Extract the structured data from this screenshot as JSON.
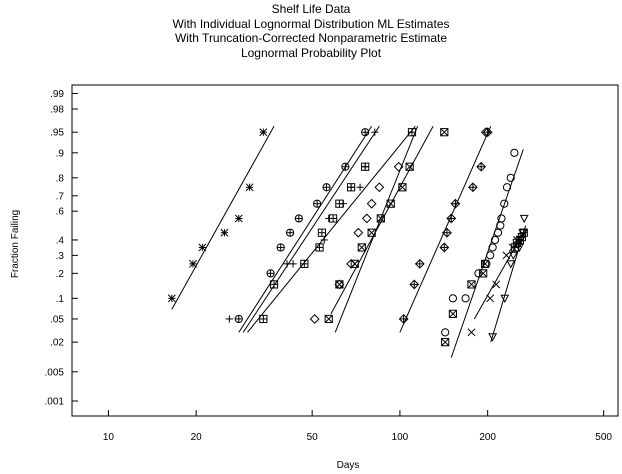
{
  "chart_data": {
    "type": "scatter",
    "title_lines": [
      "Shelf Life Data",
      "With Individual Lognormal Distribution ML Estimates",
      "With Truncation-Corrected Nonparametric Estimate",
      "Lognormal Probability Plot"
    ],
    "xlabel": "Days",
    "ylabel": "Fraction Failing",
    "x_scale": "log",
    "y_scale": "normal-probability",
    "xlim": [
      7.5,
      560
    ],
    "ylim": [
      0.0005,
      0.997
    ],
    "x_ticks": [
      10,
      20,
      50,
      100,
      200,
      500
    ],
    "x_tick_labels": [
      "10",
      "20",
      "50",
      "100",
      "200",
      "500"
    ],
    "y_ticks": [
      0.001,
      0.005,
      0.02,
      0.05,
      0.1,
      0.2,
      0.3,
      0.4,
      0.6,
      0.7,
      0.8,
      0.9,
      0.95,
      0.98,
      0.99
    ],
    "y_tick_labels": [
      ".001",
      ".005",
      ".02",
      ".05",
      ".1",
      ".2",
      ".3",
      ".4",
      ".6",
      ".7",
      ".8",
      ".9",
      ".95",
      ".98",
      ".99"
    ],
    "grid": false,
    "legend": "none",
    "series": [
      {
        "marker": "asterisk",
        "points": [
          [
            16.5,
            0.1
          ],
          [
            19.5,
            0.25
          ],
          [
            21,
            0.35
          ],
          [
            25,
            0.45
          ],
          [
            28,
            0.55
          ],
          [
            30.5,
            0.75
          ],
          [
            34,
            0.95
          ]
        ],
        "fit_line": [
          [
            16.5,
            0.07
          ],
          [
            37,
            0.96
          ]
        ]
      },
      {
        "marker": "circle-plus",
        "points": [
          [
            28,
            0.05
          ],
          [
            36,
            0.2
          ],
          [
            39,
            0.35
          ],
          [
            42,
            0.45
          ],
          [
            45,
            0.55
          ],
          [
            52,
            0.65
          ],
          [
            56,
            0.75
          ],
          [
            65,
            0.85
          ],
          [
            76,
            0.95
          ]
        ],
        "fit_line": [
          [
            28,
            0.03
          ],
          [
            80,
            0.96
          ]
        ]
      },
      {
        "marker": "plus",
        "points": [
          [
            26,
            0.05
          ],
          [
            41,
            0.25
          ],
          [
            43,
            0.25
          ],
          [
            55,
            0.4
          ],
          [
            57,
            0.55
          ],
          [
            64,
            0.65
          ],
          [
            68,
            0.75
          ],
          [
            73,
            0.75
          ],
          [
            76,
            0.85
          ],
          [
            82,
            0.95
          ]
        ],
        "fit_line": [
          [
            29,
            0.03
          ],
          [
            85,
            0.96
          ]
        ]
      },
      {
        "marker": "boxed-plus",
        "points": [
          [
            34,
            0.05
          ],
          [
            37,
            0.15
          ],
          [
            47,
            0.25
          ],
          [
            53,
            0.35
          ],
          [
            54,
            0.45
          ],
          [
            59,
            0.55
          ],
          [
            62,
            0.65
          ],
          [
            68,
            0.75
          ],
          [
            76,
            0.85
          ],
          [
            110,
            0.95
          ]
        ],
        "fit_line": [
          [
            30,
            0.03
          ],
          [
            113,
            0.96
          ]
        ]
      },
      {
        "marker": "diamond",
        "points": [
          [
            51,
            0.05
          ],
          [
            62,
            0.15
          ],
          [
            68,
            0.25
          ],
          [
            72,
            0.45
          ],
          [
            77,
            0.55
          ],
          [
            80,
            0.65
          ],
          [
            85,
            0.75
          ],
          [
            99,
            0.85
          ],
          [
            197,
            0.95
          ]
        ],
        "fit_line": [
          [
            58,
            0.06
          ],
          [
            130,
            0.96
          ]
        ]
      },
      {
        "marker": "boxed-x",
        "points": [
          [
            57,
            0.05
          ],
          [
            62,
            0.15
          ],
          [
            70,
            0.25
          ],
          [
            74,
            0.35
          ],
          [
            80,
            0.45
          ],
          [
            86,
            0.55
          ],
          [
            93,
            0.65
          ],
          [
            102,
            0.75
          ],
          [
            108,
            0.85
          ],
          [
            142,
            0.95
          ]
        ],
        "fit_line": [
          [
            60,
            0.03
          ],
          [
            115,
            0.96
          ]
        ]
      },
      {
        "marker": "diamond-plus",
        "points": [
          [
            103,
            0.05
          ],
          [
            112,
            0.15
          ],
          [
            117,
            0.25
          ],
          [
            142,
            0.35
          ],
          [
            145,
            0.45
          ],
          [
            150,
            0.55
          ],
          [
            155,
            0.65
          ],
          [
            178,
            0.75
          ],
          [
            190,
            0.85
          ],
          [
            200,
            0.95
          ]
        ],
        "fit_line": [
          [
            100,
            0.03
          ],
          [
            205,
            0.96
          ]
        ]
      },
      {
        "marker": "circle",
        "points": [
          [
            143,
            0.03
          ],
          [
            152,
            0.1
          ],
          [
            168,
            0.1
          ],
          [
            186,
            0.2
          ],
          [
            198,
            0.25
          ],
          [
            204,
            0.3
          ],
          [
            208,
            0.35
          ],
          [
            212,
            0.4
          ],
          [
            217,
            0.45
          ],
          [
            221,
            0.5
          ],
          [
            223,
            0.55
          ],
          [
            228,
            0.65
          ],
          [
            233,
            0.75
          ],
          [
            240,
            0.8
          ],
          [
            247,
            0.9
          ]
        ],
        "fit_line": [
          [
            150,
            0.01
          ],
          [
            265,
            0.91
          ]
        ]
      },
      {
        "marker": "boxed-x",
        "points": [
          [
            143,
            0.02
          ],
          [
            152,
            0.06
          ],
          [
            176,
            0.15
          ],
          [
            193,
            0.2
          ],
          [
            196,
            0.25
          ]
        ],
        "fit_line": []
      },
      {
        "marker": "x",
        "points": [
          [
            176,
            0.03
          ],
          [
            204,
            0.1
          ],
          [
            214,
            0.15
          ],
          [
            232,
            0.3
          ],
          [
            244,
            0.35
          ],
          [
            252,
            0.4
          ]
        ],
        "fit_line": []
      },
      {
        "marker": "triangle-down",
        "points": [
          [
            208,
            0.025
          ],
          [
            229,
            0.1
          ],
          [
            240,
            0.25
          ],
          [
            245,
            0.3
          ],
          [
            257,
            0.35
          ],
          [
            260,
            0.4
          ],
          [
            264,
            0.45
          ],
          [
            267,
            0.55
          ],
          [
            265,
            0.45
          ]
        ],
        "fit_line": [
          [
            205,
            0.02
          ],
          [
            270,
            0.5
          ]
        ]
      },
      {
        "marker": "boxed-plus",
        "points": [
          [
            248,
            0.35
          ],
          [
            252,
            0.38
          ],
          [
            258,
            0.4
          ],
          [
            262,
            0.42
          ],
          [
            266,
            0.45
          ]
        ],
        "fit_line": [
          [
            180,
            0.05
          ],
          [
            270,
            0.48
          ]
        ]
      }
    ]
  }
}
